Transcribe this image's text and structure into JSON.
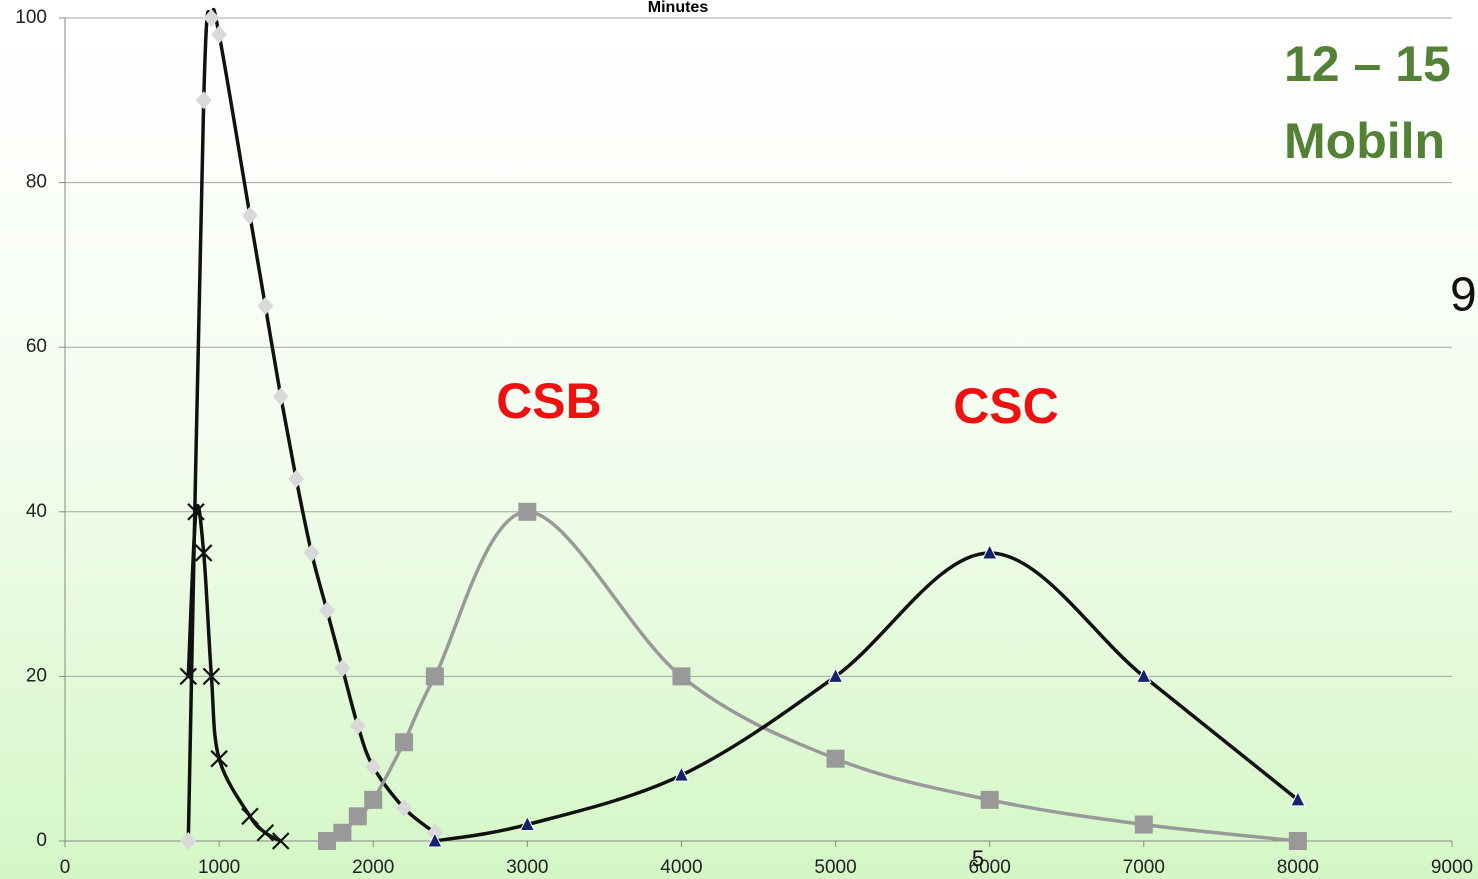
{
  "chart_data": {
    "type": "line",
    "title": "Minutes",
    "annotations": [
      "CSB",
      "CSC",
      "12 – 15",
      "Mobiln",
      "9",
      "5"
    ],
    "xlim": [
      0,
      9000
    ],
    "xticks": [
      0,
      1000,
      2000,
      3000,
      4000,
      5000,
      6000,
      7000,
      8000,
      9000
    ],
    "ylim": [
      0,
      100
    ],
    "yticks": [
      0,
      20,
      40,
      60,
      80,
      100
    ],
    "grid": true,
    "series": [
      {
        "color": "#111111",
        "marker": "x",
        "marker_color": "#111111",
        "x": [
          800,
          850,
          900,
          950,
          1000,
          1200,
          1300,
          1400
        ],
        "values": [
          20,
          40,
          35,
          20,
          10,
          3,
          1,
          0
        ]
      },
      {
        "color": "#111111",
        "marker": "diamond",
        "marker_color": "#d9d9d9",
        "x": [
          800,
          900,
          950,
          1000,
          1200,
          1300,
          1400,
          1500,
          1600,
          1700,
          1800,
          1900,
          2000,
          2200,
          2400
        ],
        "values": [
          0,
          90,
          100,
          98,
          76,
          65,
          54,
          44,
          35,
          28,
          21,
          14,
          9,
          4,
          1
        ]
      },
      {
        "color": "#999999",
        "marker": "square",
        "marker_color": "#999999",
        "x": [
          1700,
          1800,
          1900,
          2000,
          2200,
          2400,
          3000,
          4000,
          5000,
          6000,
          7000,
          8000
        ],
        "values": [
          0,
          1,
          3,
          5,
          12,
          20,
          40,
          20,
          10,
          5,
          2,
          0
        ]
      },
      {
        "color": "#111111",
        "marker": "triangle",
        "marker_color": "#13236b",
        "x": [
          2400,
          3000,
          4000,
          5000,
          6000,
          7000,
          8000
        ],
        "values": [
          0,
          2,
          8,
          20,
          35,
          20,
          5
        ]
      }
    ]
  }
}
